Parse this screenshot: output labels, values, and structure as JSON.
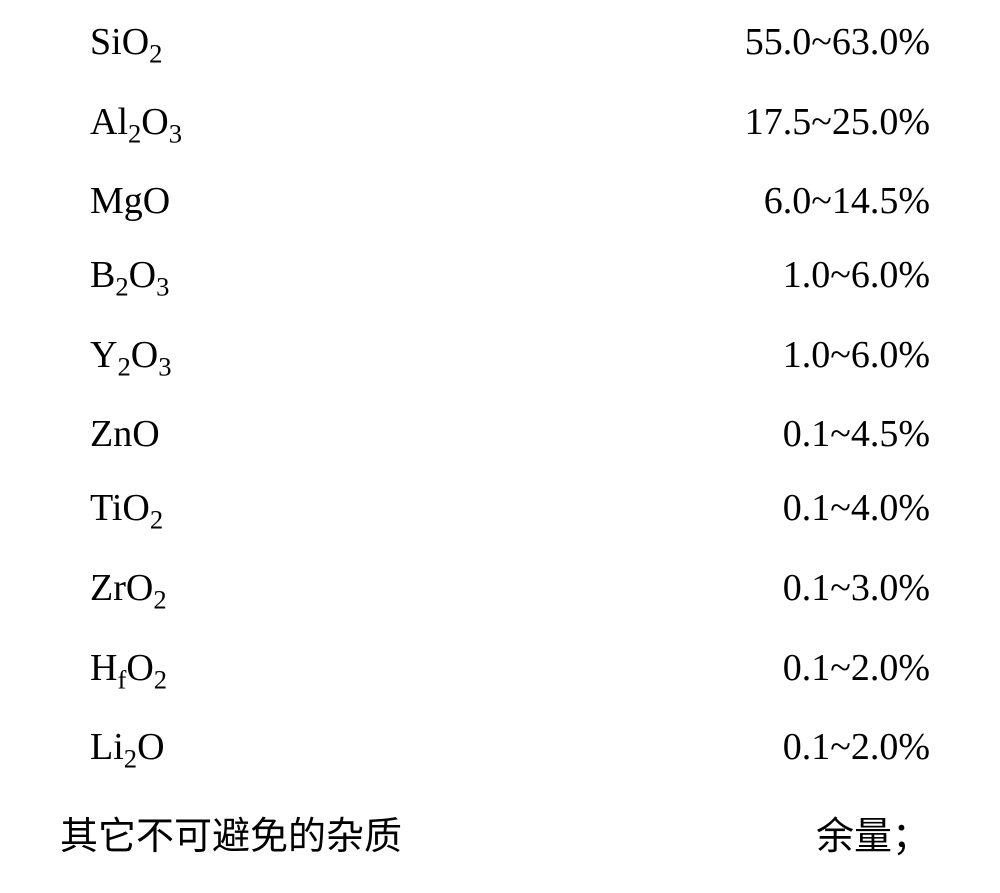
{
  "table": {
    "background_color": "#ffffff",
    "text_color": "#000000",
    "font_size": 38,
    "font_family": "Times New Roman",
    "rows": [
      {
        "compound_html": "SiO<sub>2</sub>",
        "value": "55.0~63.0%"
      },
      {
        "compound_html": "Al<sub>2</sub>O<sub>3</sub>",
        "value": "17.5~25.0%"
      },
      {
        "compound_html": "MgO",
        "value": "6.0~14.5%"
      },
      {
        "compound_html": "B<sub>2</sub>O<sub>3</sub>",
        "value": "1.0~6.0%"
      },
      {
        "compound_html": "Y<sub>2</sub>O<sub>3</sub>",
        "value": "1.0~6.0%"
      },
      {
        "compound_html": "ZnO",
        "value": "0.1~4.5%"
      },
      {
        "compound_html": "TiO<sub>2</sub>",
        "value": "0.1~4.0%"
      },
      {
        "compound_html": "ZrO<sub>2</sub>",
        "value": "0.1~3.0%"
      },
      {
        "compound_html": "H<sub>f</sub>O<sub>2</sub>",
        "value": "0.1~2.0%"
      },
      {
        "compound_html": "Li<sub>2</sub>O",
        "value": "0.1~2.0%"
      },
      {
        "compound_html": "其它不可避免的杂质",
        "value": "余量；",
        "last": true
      }
    ]
  }
}
